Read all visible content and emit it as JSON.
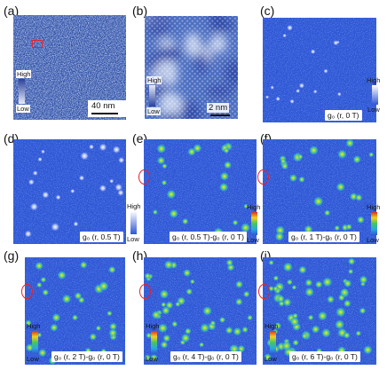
{
  "labels": {
    "a": "(a)",
    "b": "(b)",
    "c": "(c)",
    "d": "(d)",
    "e": "(e)",
    "f": "(f)",
    "g": "(g)",
    "h": "(h)",
    "i": "(i)"
  },
  "colorbar": {
    "high": "High",
    "low": "Low"
  },
  "scalebars": {
    "a": "40 nm",
    "b": "2 nm"
  },
  "captions": {
    "c": "g₀ (r, 0 T)",
    "d": "g₀ (r, 0.5 T)",
    "e": "g₀ (r, 0.5 T)-g₀ (r, 0 T)",
    "f": "g₀ (r, 1 T)-g₀ (r, 0 T)",
    "g": "g₀ (r, 2 T)-g₀ (r, 0 T)",
    "h": "g₀ (r, 4 T)-g₀ (r, 0 T)",
    "i": "g₀ (r, 6 T)-g₀ (r, 0 T)"
  },
  "colors": {
    "map_bg": "#2f57d6",
    "topo_dark": "#2a3f9a",
    "topo_light": "#e6ecf8",
    "marker": "#e8202a"
  }
}
